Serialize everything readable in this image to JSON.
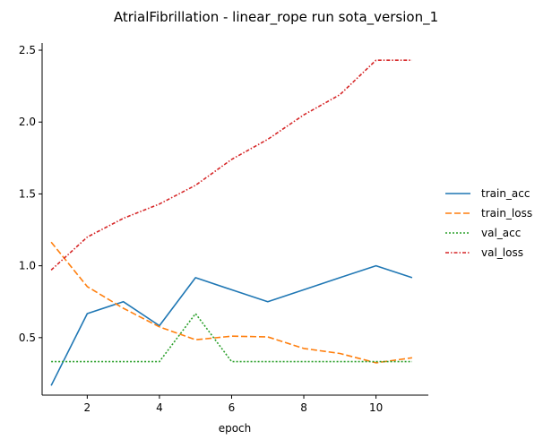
{
  "chart_data": {
    "type": "line",
    "title": "AtrialFibrillation - linear_rope run sota_version_1",
    "xlabel": "epoch",
    "ylabel": "",
    "x": [
      1,
      2,
      3,
      4,
      5,
      6,
      7,
      8,
      9,
      10,
      11
    ],
    "xlim": [
      0.75,
      11.45
    ],
    "ylim": [
      0.1,
      2.55
    ],
    "xticks": [
      2,
      4,
      6,
      8,
      10
    ],
    "xtick_labels": [
      "2",
      "4",
      "6",
      "8",
      "10"
    ],
    "yticks": [
      0.5,
      1.0,
      1.5,
      2.0,
      2.5
    ],
    "ytick_labels": [
      "0.5",
      "1.0",
      "1.5",
      "2.0",
      "2.5"
    ],
    "grid": false,
    "legend_position": "right",
    "series": [
      {
        "name": "train_acc",
        "color": "#1f77b4",
        "dash": "solid",
        "values": [
          0.167,
          0.667,
          0.75,
          0.583,
          0.917,
          0.833,
          0.75,
          0.833,
          0.917,
          1.0,
          0.917
        ]
      },
      {
        "name": "train_loss",
        "color": "#ff7f0e",
        "dash": "dashed",
        "values": [
          1.165,
          0.855,
          0.705,
          0.575,
          0.485,
          0.51,
          0.505,
          0.425,
          0.39,
          0.325,
          0.36
        ]
      },
      {
        "name": "val_acc",
        "color": "#2ca02c",
        "dash": "dotted",
        "values": [
          0.333,
          0.333,
          0.333,
          0.333,
          0.667,
          0.333,
          0.333,
          0.333,
          0.333,
          0.333,
          0.333
        ]
      },
      {
        "name": "val_loss",
        "color": "#d62728",
        "dash": "dashdot",
        "values": [
          0.97,
          1.2,
          1.33,
          1.43,
          1.56,
          1.74,
          1.88,
          2.05,
          2.19,
          2.43,
          2.43
        ]
      }
    ]
  }
}
